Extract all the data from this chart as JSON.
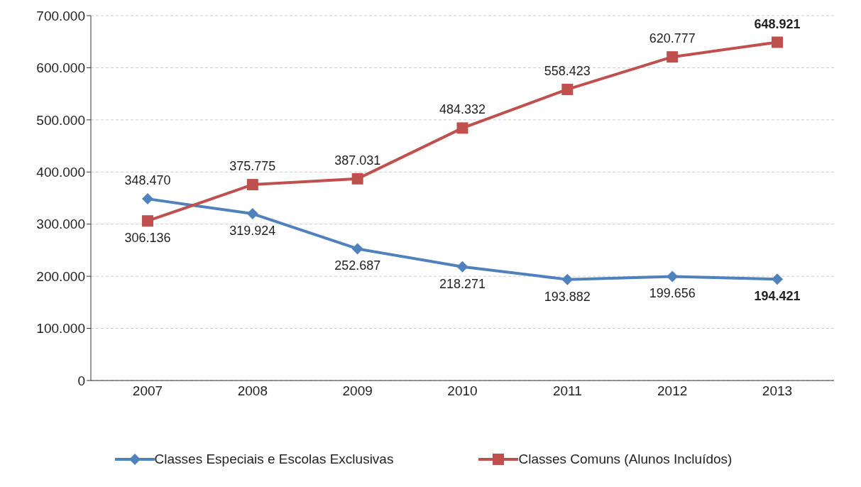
{
  "chart_data": {
    "type": "line",
    "categories": [
      "2007",
      "2008",
      "2009",
      "2010",
      "2011",
      "2012",
      "2013"
    ],
    "series": [
      {
        "name": "Classes Especiais e Escolas Exclusivas",
        "color": "#4f81bd",
        "marker": "diamond",
        "values": [
          348470,
          319924,
          252687,
          218271,
          193882,
          199656,
          194421
        ],
        "value_labels": [
          "348.470",
          "319.924",
          "252.687",
          "218.271",
          "193.882",
          "199.656",
          "194.421"
        ]
      },
      {
        "name": "Classes Comuns (Alunos Incluídos)",
        "color": "#c0504d",
        "marker": "square",
        "values": [
          306136,
          375775,
          387031,
          484332,
          558423,
          620777,
          648921
        ],
        "value_labels": [
          "306.136",
          "375.775",
          "387.031",
          "484.332",
          "558.423",
          "620.777",
          "648.921"
        ]
      }
    ],
    "ylim": [
      0,
      700000
    ],
    "yticks": [
      0,
      {
        "value": 100000,
        "label": "100.000"
      },
      {
        "value": 200000,
        "label": "200.000"
      },
      {
        "value": 300000,
        "label": "300.000"
      },
      {
        "value": 400000,
        "label": "400.000"
      },
      {
        "value": 500000,
        "label": "500.000"
      },
      {
        "value": 600000,
        "label": "600.000"
      },
      {
        "value": 700000,
        "label": "700.000"
      }
    ],
    "grid": "y",
    "legend": "bottom",
    "line_style": "solid"
  }
}
